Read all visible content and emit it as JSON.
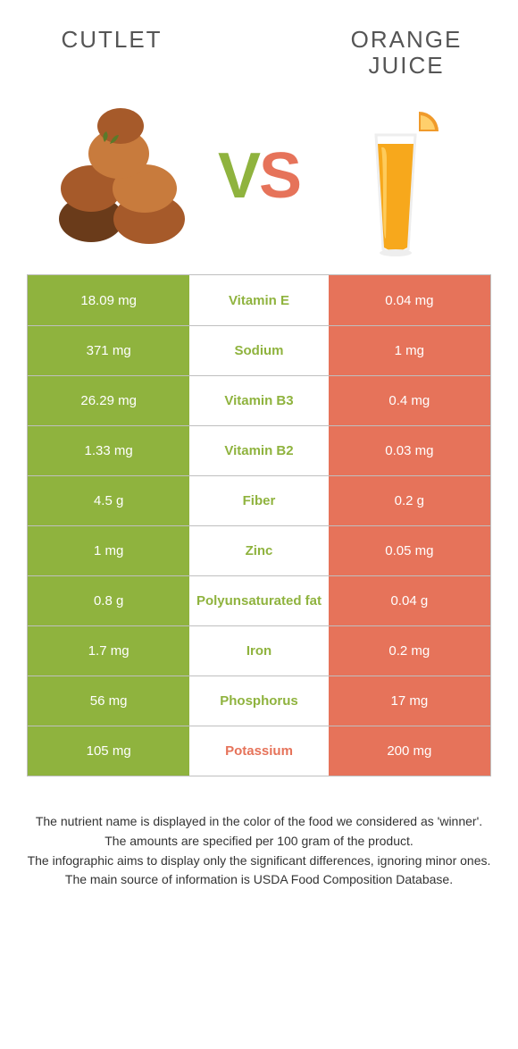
{
  "colors": {
    "left": "#8fb33e",
    "right": "#e6735a",
    "cutlet_dark": "#6a3b1a",
    "cutlet_mid": "#a65a2a",
    "cutlet_light": "#c87b3d",
    "herb": "#5a7a2a",
    "juice": "#f7a81c",
    "juice_highlight": "#ffd36b",
    "glass": "#eeeeee",
    "orange_peel": "#f09a2a",
    "orange_flesh": "#ffcf6b",
    "title_color": "#555555"
  },
  "left_title": "Cutlet",
  "right_title": "Orange juice",
  "vs_v": "V",
  "vs_s": "S",
  "rows": [
    {
      "nutrient": "Vitamin E",
      "left": "18.09 mg",
      "right": "0.04 mg",
      "winner": "left"
    },
    {
      "nutrient": "Sodium",
      "left": "371 mg",
      "right": "1 mg",
      "winner": "left"
    },
    {
      "nutrient": "Vitamin B3",
      "left": "26.29 mg",
      "right": "0.4 mg",
      "winner": "left"
    },
    {
      "nutrient": "Vitamin B2",
      "left": "1.33 mg",
      "right": "0.03 mg",
      "winner": "left"
    },
    {
      "nutrient": "Fiber",
      "left": "4.5 g",
      "right": "0.2 g",
      "winner": "left"
    },
    {
      "nutrient": "Zinc",
      "left": "1 mg",
      "right": "0.05 mg",
      "winner": "left"
    },
    {
      "nutrient": "Polyunsaturated fat",
      "left": "0.8 g",
      "right": "0.04 g",
      "winner": "left"
    },
    {
      "nutrient": "Iron",
      "left": "1.7 mg",
      "right": "0.2 mg",
      "winner": "left"
    },
    {
      "nutrient": "Phosphorus",
      "left": "56 mg",
      "right": "17 mg",
      "winner": "left"
    },
    {
      "nutrient": "Potassium",
      "left": "105 mg",
      "right": "200 mg",
      "winner": "right"
    }
  ],
  "footer": {
    "l1": "The nutrient name is displayed in the color of the food we considered as 'winner'.",
    "l2": "The amounts are specified per 100 gram of the product.",
    "l3": "The infographic aims to display only the significant differences, ignoring minor ones.",
    "l4": "The main source of information is USDA Food Composition Database."
  }
}
